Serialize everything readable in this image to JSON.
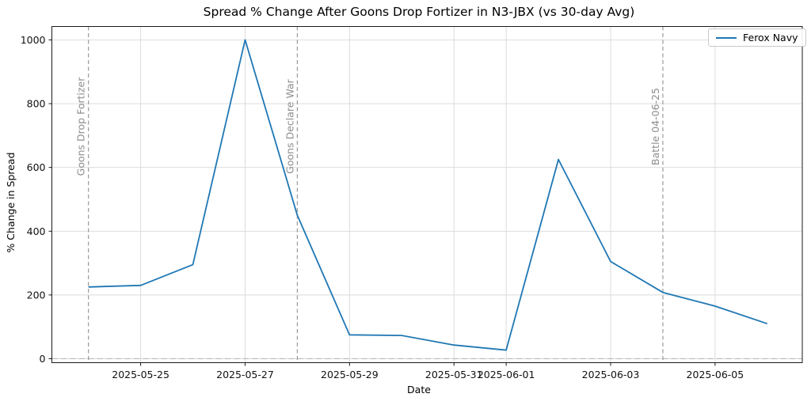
{
  "chart_data": {
    "type": "line",
    "title": "Spread % Change After Goons Drop Fortizer in N3-JBX (vs 30-day Avg)",
    "xlabel": "Date",
    "ylabel": "% Change in Spread",
    "grid": true,
    "legend": {
      "position": "upper right"
    },
    "series": [
      {
        "name": "Ferox Navy",
        "color": "#1f77b4",
        "x": [
          "2025-05-24",
          "2025-05-25",
          "2025-05-26",
          "2025-05-27",
          "2025-05-28",
          "2025-05-29",
          "2025-05-30",
          "2025-05-31",
          "2025-06-01",
          "2025-06-02",
          "2025-06-03",
          "2025-06-04",
          "2025-06-05",
          "2025-06-06"
        ],
        "values": [
          225,
          230,
          295,
          1000,
          450,
          75,
          73,
          43,
          27,
          625,
          305,
          208,
          165,
          110
        ]
      }
    ],
    "x_ticks": [
      "2025-05-25",
      "2025-05-27",
      "2025-05-29",
      "2025-05-31",
      "2025-06-01",
      "2025-06-03",
      "2025-06-05"
    ],
    "y_ticks": [
      0,
      200,
      400,
      600,
      800,
      1000
    ],
    "xlim_days_from_first": [
      -0.7,
      13.67
    ],
    "ylim": [
      -12.4,
      1042
    ],
    "zero_line": {
      "value": 0
    },
    "event_lines": [
      {
        "date": "2025-05-24",
        "label": "Goons Drop Fortizer"
      },
      {
        "date": "2025-05-28",
        "label": "Goons Declare War"
      },
      {
        "date": "2025-06-04",
        "label": "Battle 04-06-25"
      }
    ],
    "colors": {
      "line": "#1f77b4",
      "grid": "#d9d9d9",
      "event_line": "#9a9a9a",
      "event_label": "#8c8c8c",
      "zero_line": "#b3b3b3",
      "axis": "#1a1a1a",
      "tick_label": "#111111"
    }
  }
}
